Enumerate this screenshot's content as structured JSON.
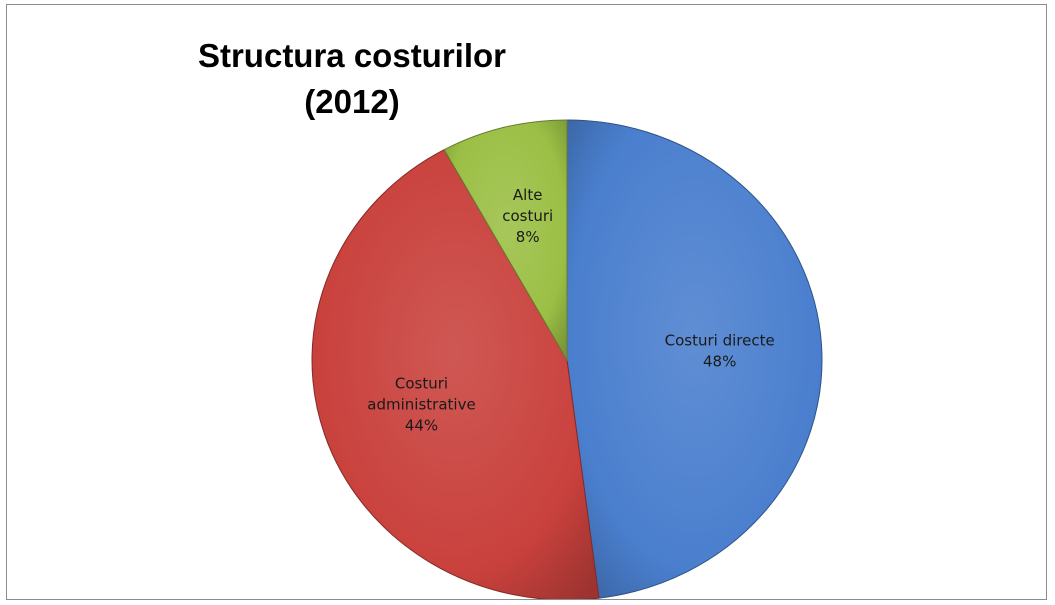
{
  "chart_data": {
    "type": "pie",
    "title": [
      "Structura costurilor",
      "(2012)"
    ],
    "slices": [
      {
        "label": "Costuri directe",
        "label_lines": [
          "Costuri directe"
        ],
        "percent_text": "48%",
        "value": 48,
        "color": "#4a7fce"
      },
      {
        "label": "Costuri administrative",
        "label_lines": [
          "Costuri",
          "administrative"
        ],
        "percent_text": "44%",
        "value": 44,
        "color": "#c9413d"
      },
      {
        "label": "Alte costuri",
        "label_lines": [
          "Alte",
          "costuri"
        ],
        "percent_text": "8%",
        "value": 8,
        "color": "#9bbf45"
      }
    ],
    "start_angle": "12 o'clock",
    "direction": "clockwise",
    "legend": "none"
  }
}
